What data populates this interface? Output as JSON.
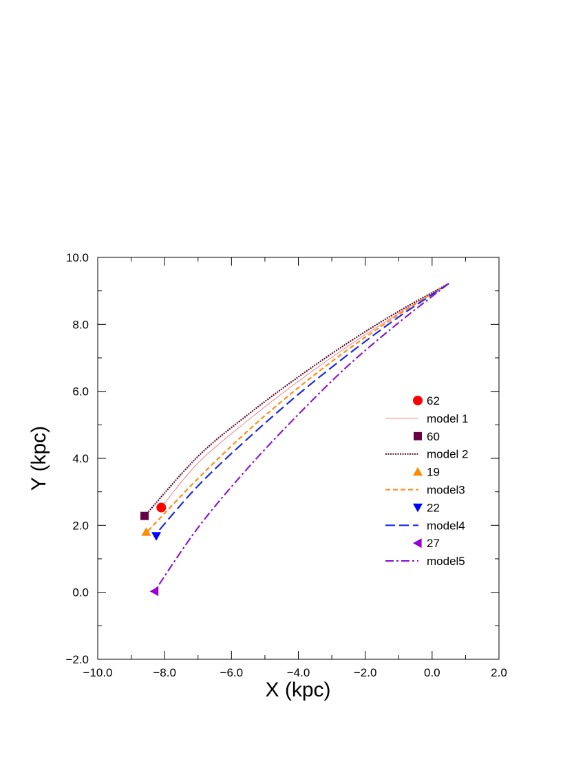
{
  "chart_data": {
    "type": "line",
    "title": "",
    "xlabel": "X (kpc)",
    "ylabel": "Y (kpc)",
    "xlim": [
      -10,
      2
    ],
    "ylim": [
      -2,
      10
    ],
    "xticks": [
      -10,
      -8,
      -6,
      -4,
      -2,
      0,
      2
    ],
    "xtick_labels": [
      "−10.0",
      "−8.0",
      "−6.0",
      "−4.0",
      "−2.0",
      "0.0",
      "2.0"
    ],
    "yticks": [
      -2,
      0,
      2,
      4,
      6,
      8,
      10
    ],
    "ytick_labels": [
      "−2.0",
      "0.0",
      "2.0",
      "4.0",
      "6.0",
      "8.0",
      "10.0"
    ],
    "grid": false,
    "legend_position": "right",
    "series": [
      {
        "name": "model 1",
        "color": "#ff5a5a",
        "dash": "",
        "width": 0.8,
        "points": [
          [
            0.5,
            9.22
          ],
          [
            -1.0,
            8.33
          ],
          [
            -2.5,
            7.36
          ],
          [
            -4.0,
            6.3
          ],
          [
            -5.5,
            5.14
          ],
          [
            -7.0,
            3.86
          ],
          [
            -8.1,
            2.53
          ]
        ]
      },
      {
        "name": "model 2",
        "color": "#5a0a2a",
        "dash": "2 1.5",
        "width": 2.2,
        "points": [
          [
            0.5,
            9.22
          ],
          [
            -1.0,
            8.39
          ],
          [
            -2.5,
            7.46
          ],
          [
            -4.0,
            6.43
          ],
          [
            -5.5,
            5.31
          ],
          [
            -7.0,
            4.06
          ],
          [
            -8.55,
            2.33
          ]
        ]
      },
      {
        "name": "model3",
        "color": "#ff8c1a",
        "dash": "7 4",
        "width": 2.2,
        "points": [
          [
            0.5,
            9.22
          ],
          [
            -1.0,
            8.29
          ],
          [
            -2.5,
            7.26
          ],
          [
            -4.0,
            6.11
          ],
          [
            -5.5,
            4.83
          ],
          [
            -7.0,
            3.4
          ],
          [
            -8.5,
            1.83
          ]
        ]
      },
      {
        "name": "model4",
        "color": "#1a28e6",
        "dash": "14 6",
        "width": 2.2,
        "points": [
          [
            0.5,
            9.22
          ],
          [
            -1.0,
            8.22
          ],
          [
            -2.5,
            7.11
          ],
          [
            -4.0,
            5.91
          ],
          [
            -5.5,
            4.6
          ],
          [
            -7.0,
            3.18
          ],
          [
            -8.25,
            1.75
          ]
        ]
      },
      {
        "name": "model5",
        "color": "#8a1acc",
        "dash": "12 4 3 4",
        "width": 2.2,
        "points": [
          [
            0.5,
            9.22
          ],
          [
            -1.0,
            8.05
          ],
          [
            -2.5,
            6.78
          ],
          [
            -4.0,
            5.31
          ],
          [
            -5.5,
            3.72
          ],
          [
            -7.0,
            1.93
          ],
          [
            -8.3,
            0.03
          ]
        ]
      }
    ],
    "markers": [
      {
        "name": "62",
        "shape": "circle",
        "color": "#ff0000",
        "x": -8.1,
        "y": 2.53
      },
      {
        "name": "60",
        "shape": "square",
        "color": "#660044",
        "x": -8.6,
        "y": 2.28
      },
      {
        "name": "19",
        "shape": "triangle-up",
        "color": "#ff8c00",
        "x": -8.55,
        "y": 1.8
      },
      {
        "name": "22",
        "shape": "triangle-down",
        "color": "#0000ff",
        "x": -8.25,
        "y": 1.68
      },
      {
        "name": "27",
        "shape": "triangle-left",
        "color": "#9400d3",
        "x": -8.3,
        "y": 0.03
      }
    ],
    "legend": [
      {
        "label": "62",
        "kind": "marker",
        "shape": "circle",
        "color": "#ff0000"
      },
      {
        "label": "model 1",
        "kind": "line",
        "color": "#ff5a5a",
        "dash": "",
        "width": 0.8
      },
      {
        "label": "60",
        "kind": "marker",
        "shape": "square",
        "color": "#660044"
      },
      {
        "label": "model 2",
        "kind": "line",
        "color": "#5a0a2a",
        "dash": "2 1.5",
        "width": 2.2
      },
      {
        "label": "19",
        "kind": "marker",
        "shape": "triangle-up",
        "color": "#ff8c00"
      },
      {
        "label": "model3",
        "kind": "line",
        "color": "#ff8c1a",
        "dash": "7 4",
        "width": 2.2
      },
      {
        "label": "22",
        "kind": "marker",
        "shape": "triangle-down",
        "color": "#0000ff"
      },
      {
        "label": "model4",
        "kind": "line",
        "color": "#1a28e6",
        "dash": "14 6",
        "width": 2.2
      },
      {
        "label": "27",
        "kind": "marker",
        "shape": "triangle-left",
        "color": "#9400d3"
      },
      {
        "label": "model5",
        "kind": "line",
        "color": "#8a1acc",
        "dash": "12 4 3 4",
        "width": 2.2
      }
    ]
  }
}
